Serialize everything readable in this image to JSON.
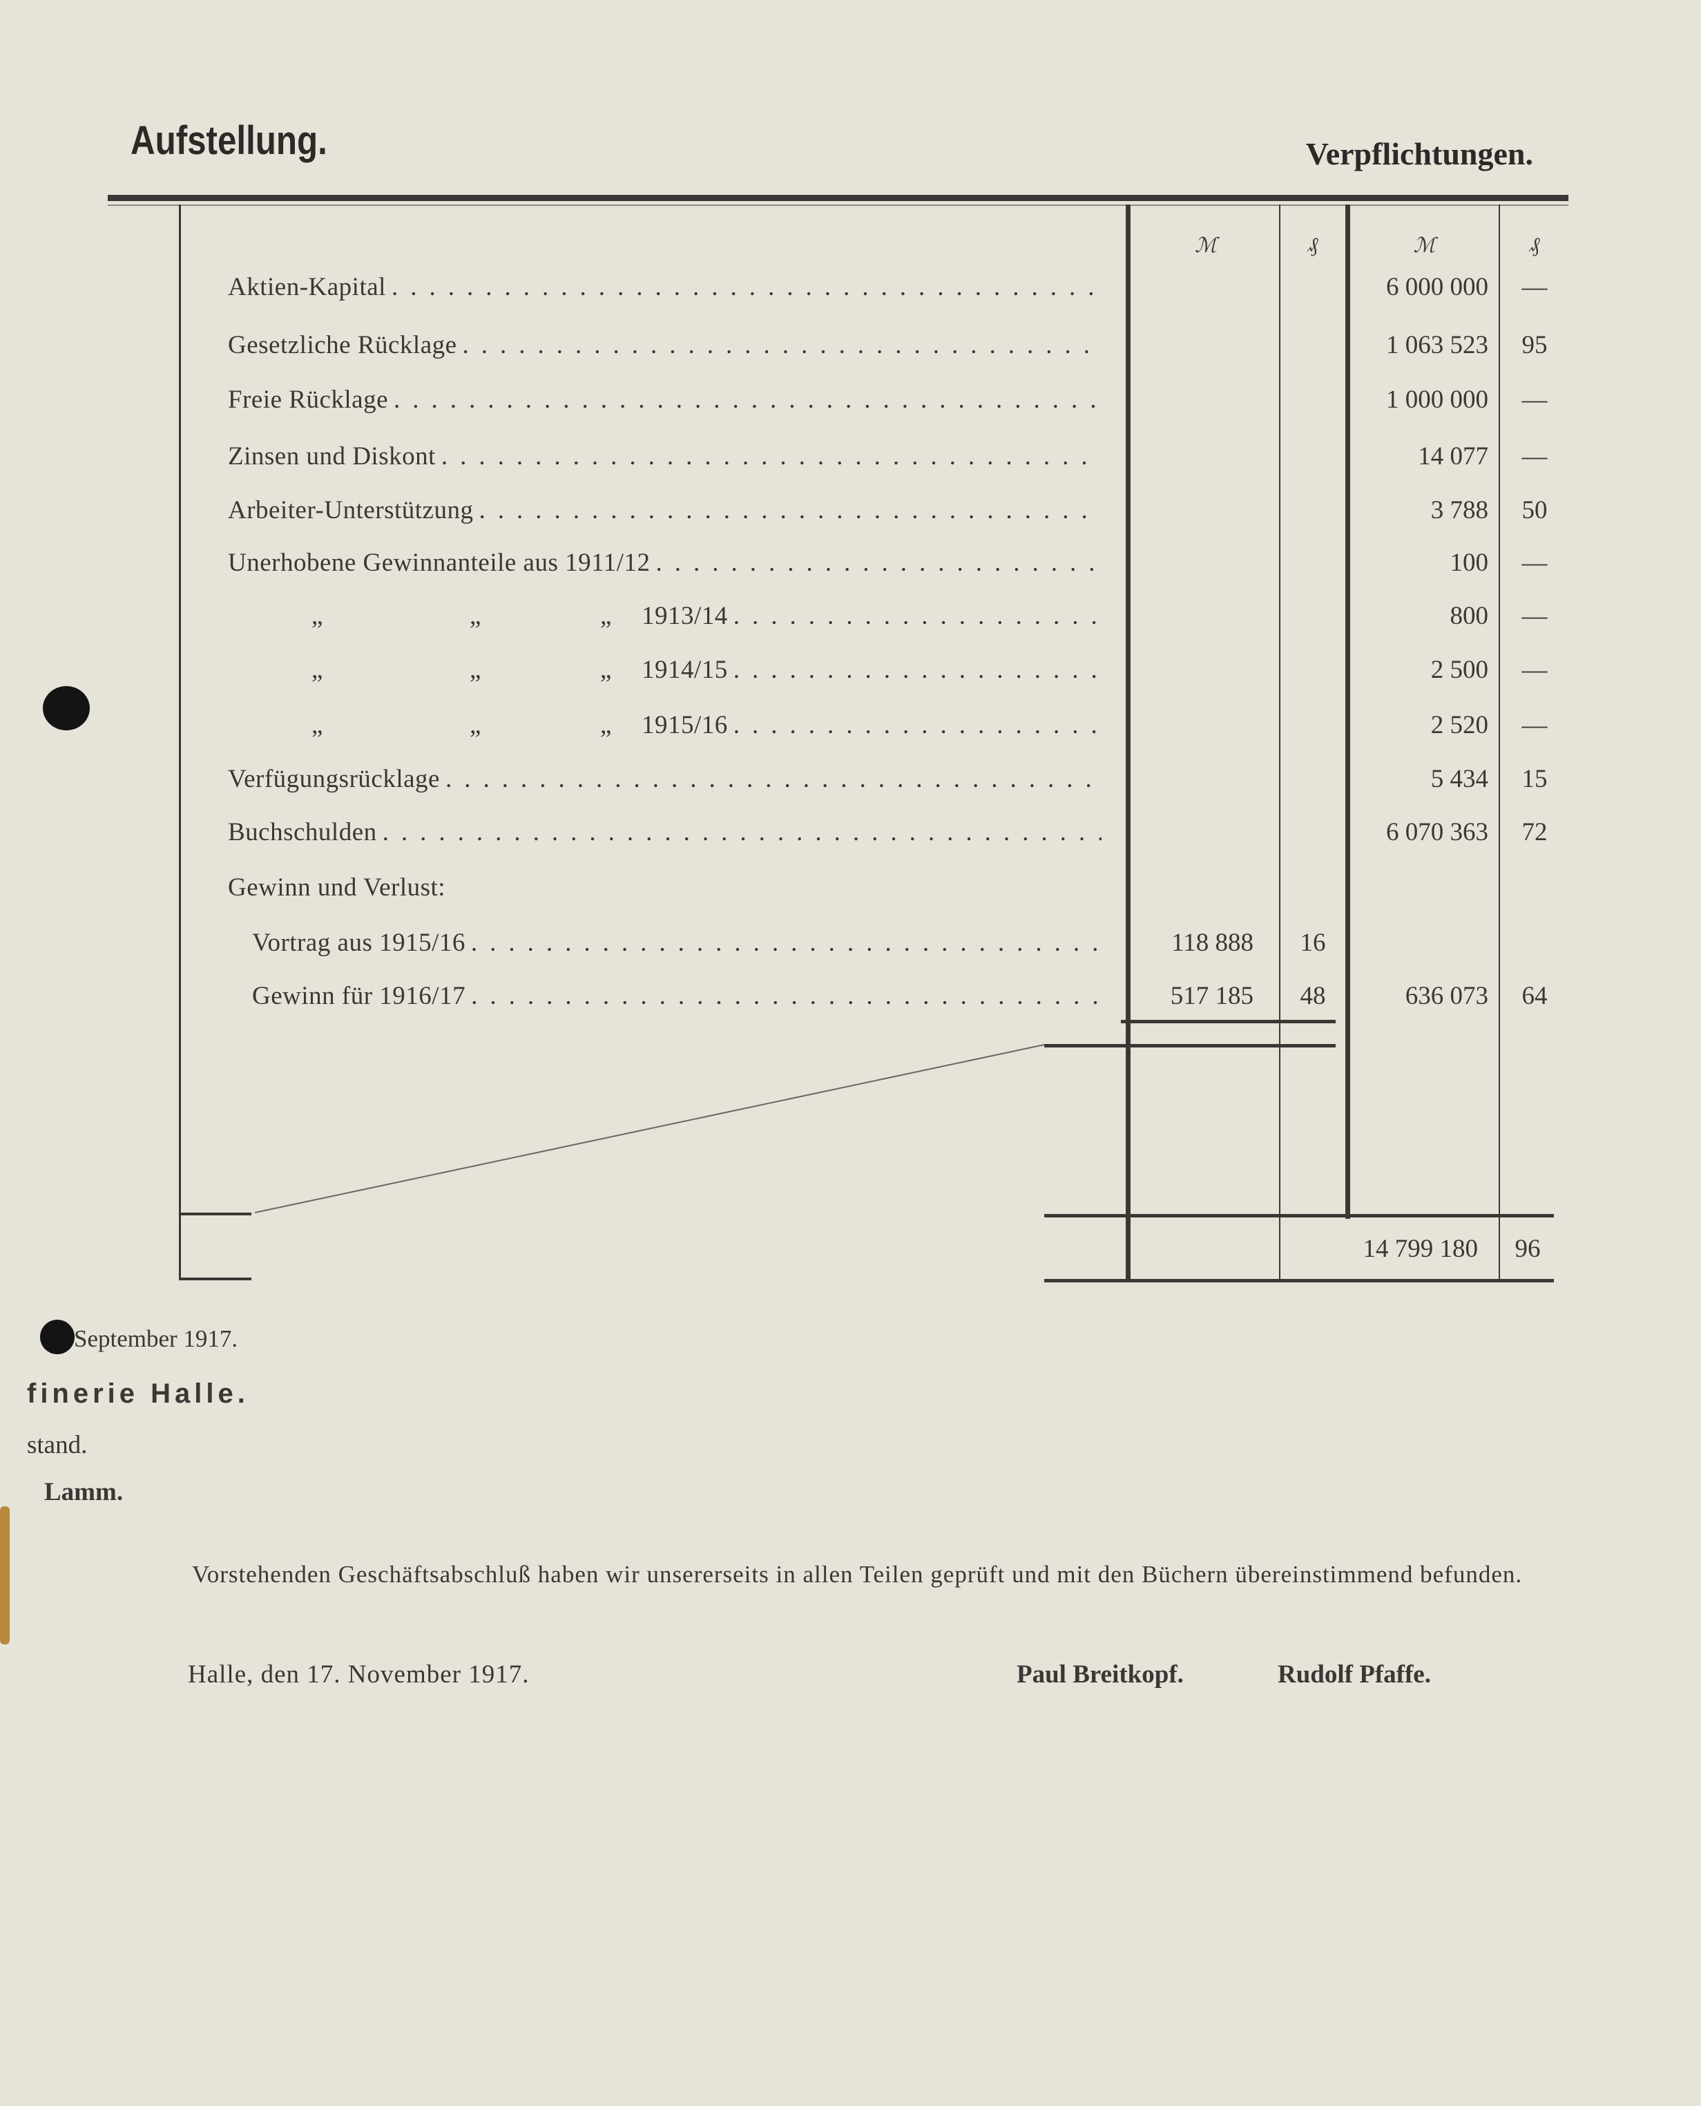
{
  "header": {
    "left_title": "Aufstellung.",
    "right_title": "Verpflichtungen."
  },
  "columns": {
    "mark_symbol": "ℳ",
    "pf_symbol": "₰",
    "mark_symbol_2": "ℳ",
    "pf_symbol_2": "₰"
  },
  "rows": [
    {
      "label": "Aktien-Kapital",
      "sub_m": "",
      "sub_pf": "",
      "m": "6 000 000",
      "pf": "—"
    },
    {
      "label": "Gesetzliche Rücklage",
      "sub_m": "",
      "sub_pf": "",
      "m": "1 063 523",
      "pf": "95"
    },
    {
      "label": "Freie Rücklage",
      "sub_m": "",
      "sub_pf": "",
      "m": "1 000 000",
      "pf": "—"
    },
    {
      "label": "Zinsen und Diskont",
      "sub_m": "",
      "sub_pf": "",
      "m": "14 077",
      "pf": "—"
    },
    {
      "label": "Arbeiter-Unterstützung",
      "sub_m": "",
      "sub_pf": "",
      "m": "3 788",
      "pf": "50"
    },
    {
      "label": "Unerhobene Gewinnanteile aus 1911/12",
      "sub_m": "",
      "sub_pf": "",
      "m": "100",
      "pf": "—"
    },
    {
      "label": "1913/14",
      "ditto": "„",
      "sub_m": "",
      "sub_pf": "",
      "m": "800",
      "pf": "—"
    },
    {
      "label": "1914/15",
      "ditto": "„",
      "sub_m": "",
      "sub_pf": "",
      "m": "2 500",
      "pf": "—"
    },
    {
      "label": "1915/16",
      "ditto": "„",
      "sub_m": "",
      "sub_pf": "",
      "m": "2 520",
      "pf": "—"
    },
    {
      "label": "Verfügungsrücklage",
      "sub_m": "",
      "sub_pf": "",
      "m": "5 434",
      "pf": "15"
    },
    {
      "label": "Buchschulden",
      "sub_m": "",
      "sub_pf": "",
      "m": "6 070 363",
      "pf": "72"
    },
    {
      "label": "Gewinn und Verlust:",
      "heading": true,
      "sub_m": "",
      "sub_pf": "",
      "m": "",
      "pf": ""
    },
    {
      "label": "Vortrag aus 1915/16",
      "indent": true,
      "sub_m": "118 888",
      "sub_pf": "16",
      "m": "",
      "pf": ""
    },
    {
      "label": "Gewinn für 1916/17",
      "indent": true,
      "sub_m": "517 185",
      "sub_pf": "48",
      "m": "636 073",
      "pf": "64"
    }
  ],
  "total": {
    "m": "14 799 180",
    "pf": "96"
  },
  "left_fragments": {
    "date": "September 1917.",
    "company": "finerie Halle.",
    "board": "stand.",
    "name": "Lamm."
  },
  "audit": {
    "text": "Vorstehenden Geschäftsabschluß haben wir unsererseits in allen Teilen geprüft und mit den Büchern übereinstimmend befunden.",
    "place_date": "Halle, den 17. November 1917.",
    "signatures": [
      "Paul Breitkopf.",
      "Rudolf Pfaffe."
    ]
  }
}
